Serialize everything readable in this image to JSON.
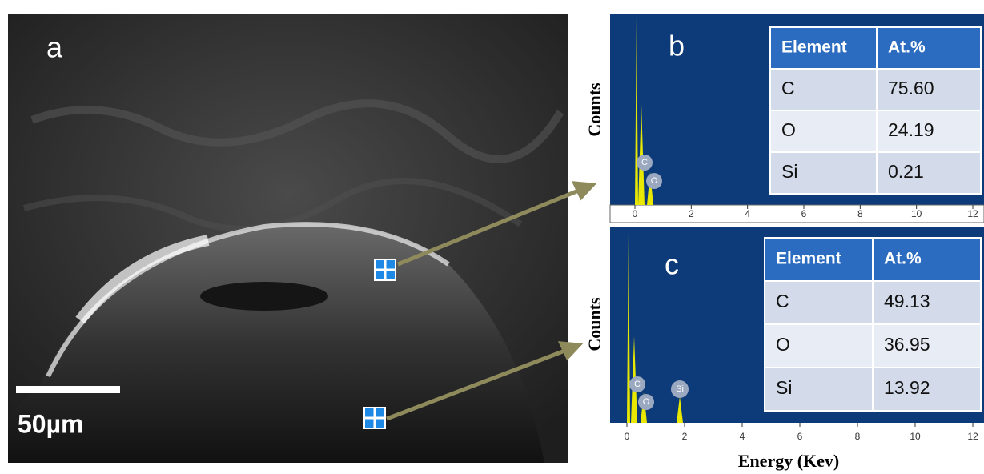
{
  "panel_a": {
    "label": "a",
    "scale_bar": "50µm"
  },
  "panel_b": {
    "label": "b",
    "y_label": "Counts",
    "xticks": [
      0,
      2,
      4,
      6,
      8,
      10,
      12
    ],
    "peak_labels": [
      "C",
      "O"
    ],
    "table": {
      "header": [
        "Element",
        "At.%"
      ],
      "rows": [
        [
          "C",
          "75.60"
        ],
        [
          "O",
          "24.19"
        ],
        [
          "Si",
          "0.21"
        ]
      ]
    }
  },
  "panel_c": {
    "label": "c",
    "y_label": "Counts",
    "xticks": [
      0,
      2,
      4,
      6,
      8,
      10,
      12
    ],
    "peak_labels": [
      "C",
      "O",
      "Si"
    ],
    "table": {
      "header": [
        "Element",
        "At.%"
      ],
      "rows": [
        [
          "C",
          "49.13"
        ],
        [
          "O",
          "36.95"
        ],
        [
          "Si",
          "13.92"
        ]
      ]
    }
  },
  "x_label": "Energy (Kev)"
}
